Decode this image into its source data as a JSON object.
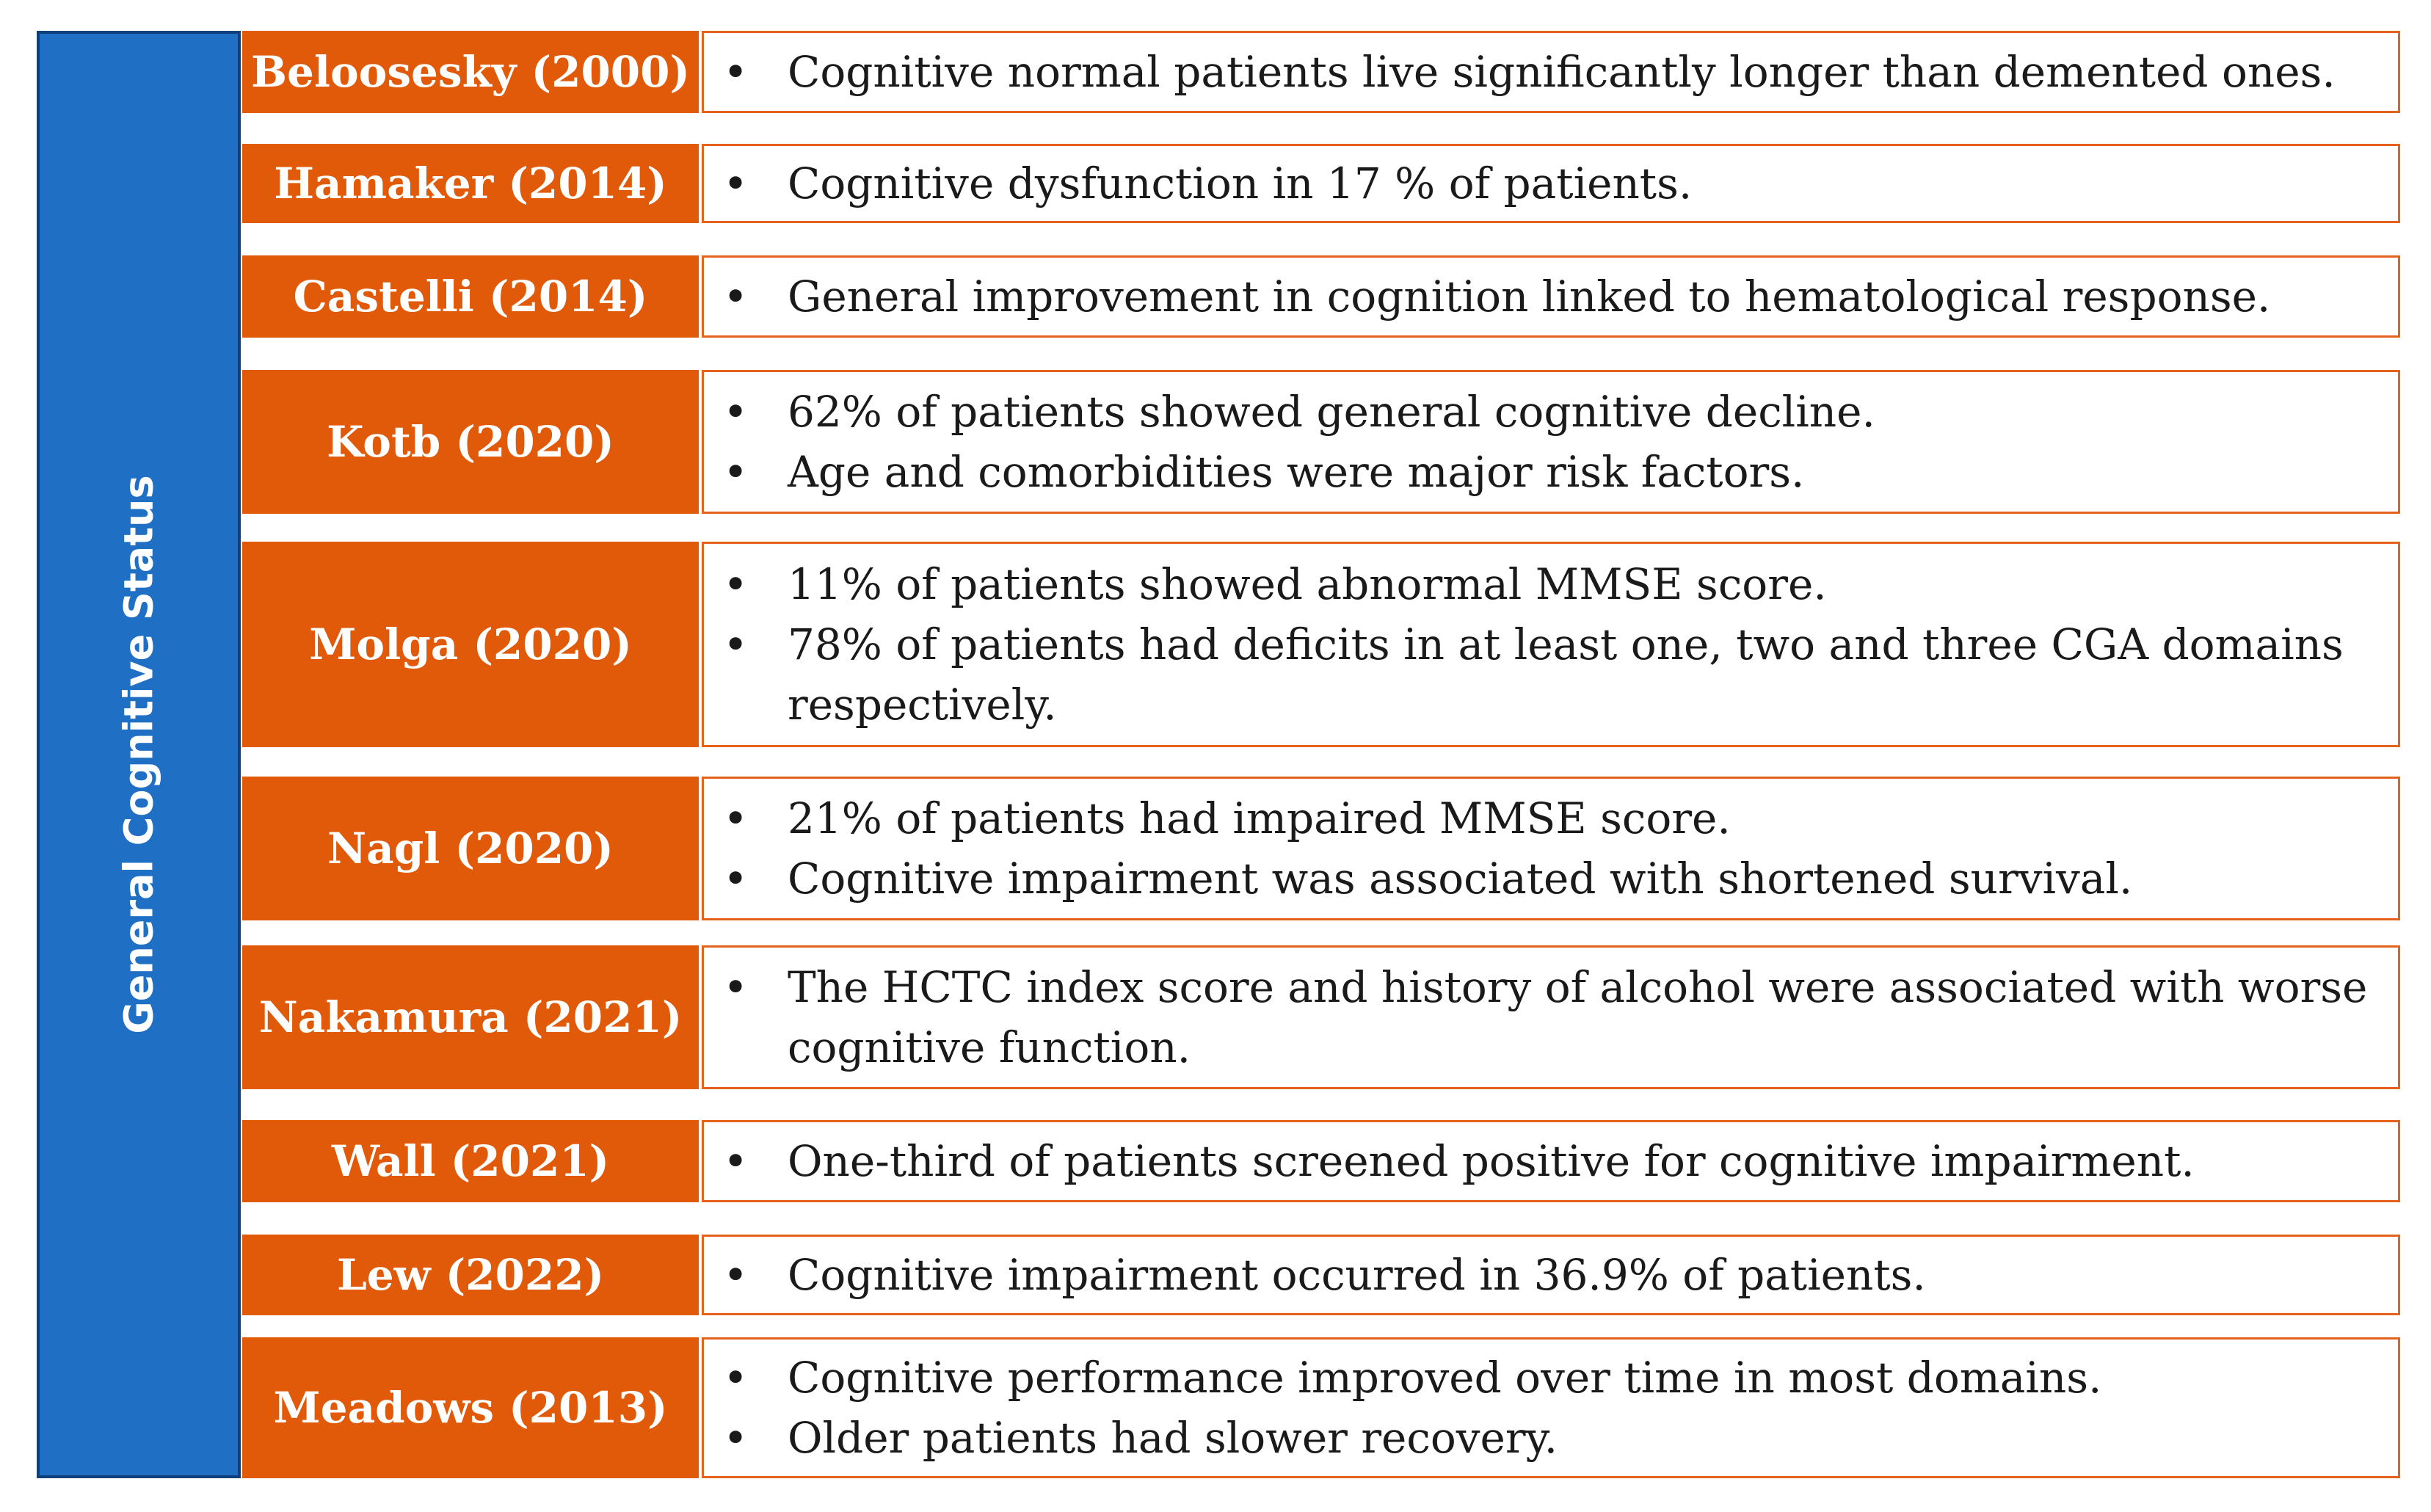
{
  "category_label": "General Cognitive Status",
  "rows": [
    {
      "study": "Beloosesky (2000)",
      "findings": [
        "Cognitive normal patients live significantly longer than demented ones."
      ]
    },
    {
      "study": "Hamaker (2014)",
      "findings": [
        "Cognitive dysfunction in 17 % of patients."
      ]
    },
    {
      "study": "Castelli (2014)",
      "findings": [
        "General improvement in cognition linked to hematological response."
      ]
    },
    {
      "study": "Kotb (2020)",
      "findings": [
        "62% of patients showed general cognitive decline.",
        "Age and comorbidities were major risk factors."
      ]
    },
    {
      "study": "Molga (2020)",
      "findings": [
        "11% of patients showed abnormal MMSE score.",
        "78% of patients had deficits in at least one, two and three CGA domains respectively."
      ]
    },
    {
      "study": "Nagl (2020)",
      "findings": [
        "21% of patients had impaired MMSE score.",
        "Cognitive impairment was associated with shortened survival."
      ]
    },
    {
      "study": "Nakamura (2021)",
      "findings": [
        "The HCTC index score and history of alcohol were associated with worse cognitive function."
      ]
    },
    {
      "study": "Wall (2021)",
      "findings": [
        "One-third of patients screened positive for cognitive impairment."
      ]
    },
    {
      "study": "Lew (2022)",
      "findings": [
        "Cognitive impairment occurred in 36.9% of patients."
      ]
    },
    {
      "study": "Meadows (2013)",
      "findings": [
        "Cognitive performance improved over time in most domains.",
        "Older patients had slower recovery."
      ]
    }
  ],
  "colors": {
    "category_bg": "#1f6fc5",
    "study_bg": "#e05a09",
    "findings_border": "#e3631c"
  }
}
